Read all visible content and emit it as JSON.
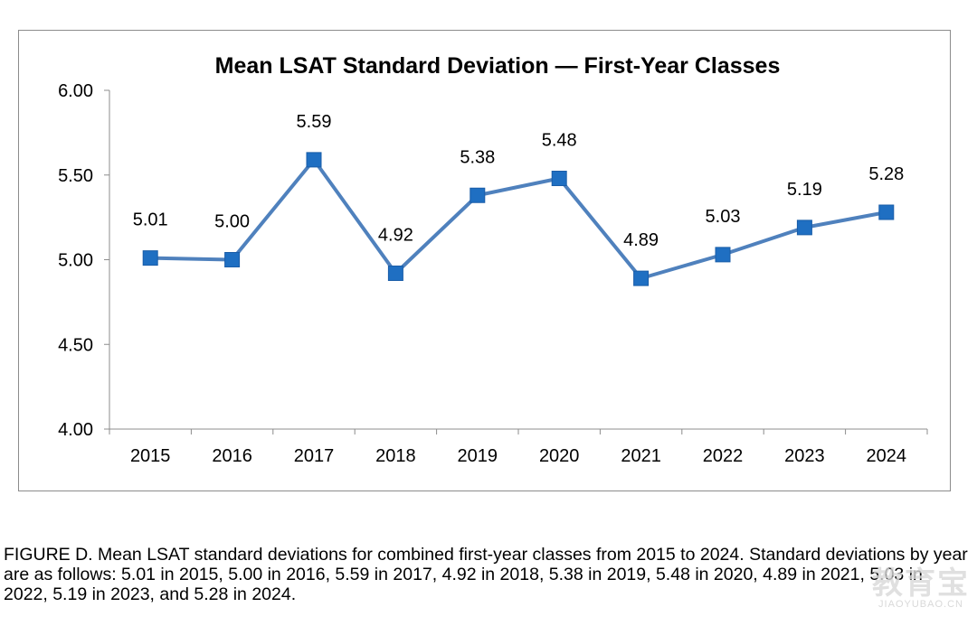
{
  "chart_data": {
    "type": "line",
    "title": "Mean LSAT Standard Deviation — First-Year Classes",
    "xlabel": "",
    "ylabel": "",
    "categories": [
      "2015",
      "2016",
      "2017",
      "2018",
      "2019",
      "2020",
      "2021",
      "2022",
      "2023",
      "2024"
    ],
    "values": [
      5.01,
      5.0,
      5.59,
      4.92,
      5.38,
      5.48,
      4.89,
      5.03,
      5.19,
      5.28
    ],
    "data_labels": [
      "5.01",
      "5.00",
      "5.59",
      "4.92",
      "5.38",
      "5.48",
      "4.89",
      "5.03",
      "5.19",
      "5.28"
    ],
    "ylim": [
      4.0,
      6.0
    ],
    "yticks": [
      "4.00",
      "4.50",
      "5.00",
      "5.50",
      "6.00"
    ],
    "grid": false,
    "legend": "none",
    "colors": {
      "line": "#4f81bd",
      "marker": "#1f6fc2"
    }
  },
  "caption": "FIGURE D. Mean LSAT standard deviations for combined first-year classes from 2015 to 2024. Standard deviations by year are as follows: 5.01 in 2015, 5.00 in 2016, 5.59 in 2017, 4.92 in 2018, 5.38 in 2019, 5.48 in 2020, 4.89 in 2021, 5.03 in 2022, 5.19 in 2023, and 5.28 in 2024.",
  "watermark": {
    "logo": "教育宝",
    "text": "JIAOYUBAO.CN"
  }
}
